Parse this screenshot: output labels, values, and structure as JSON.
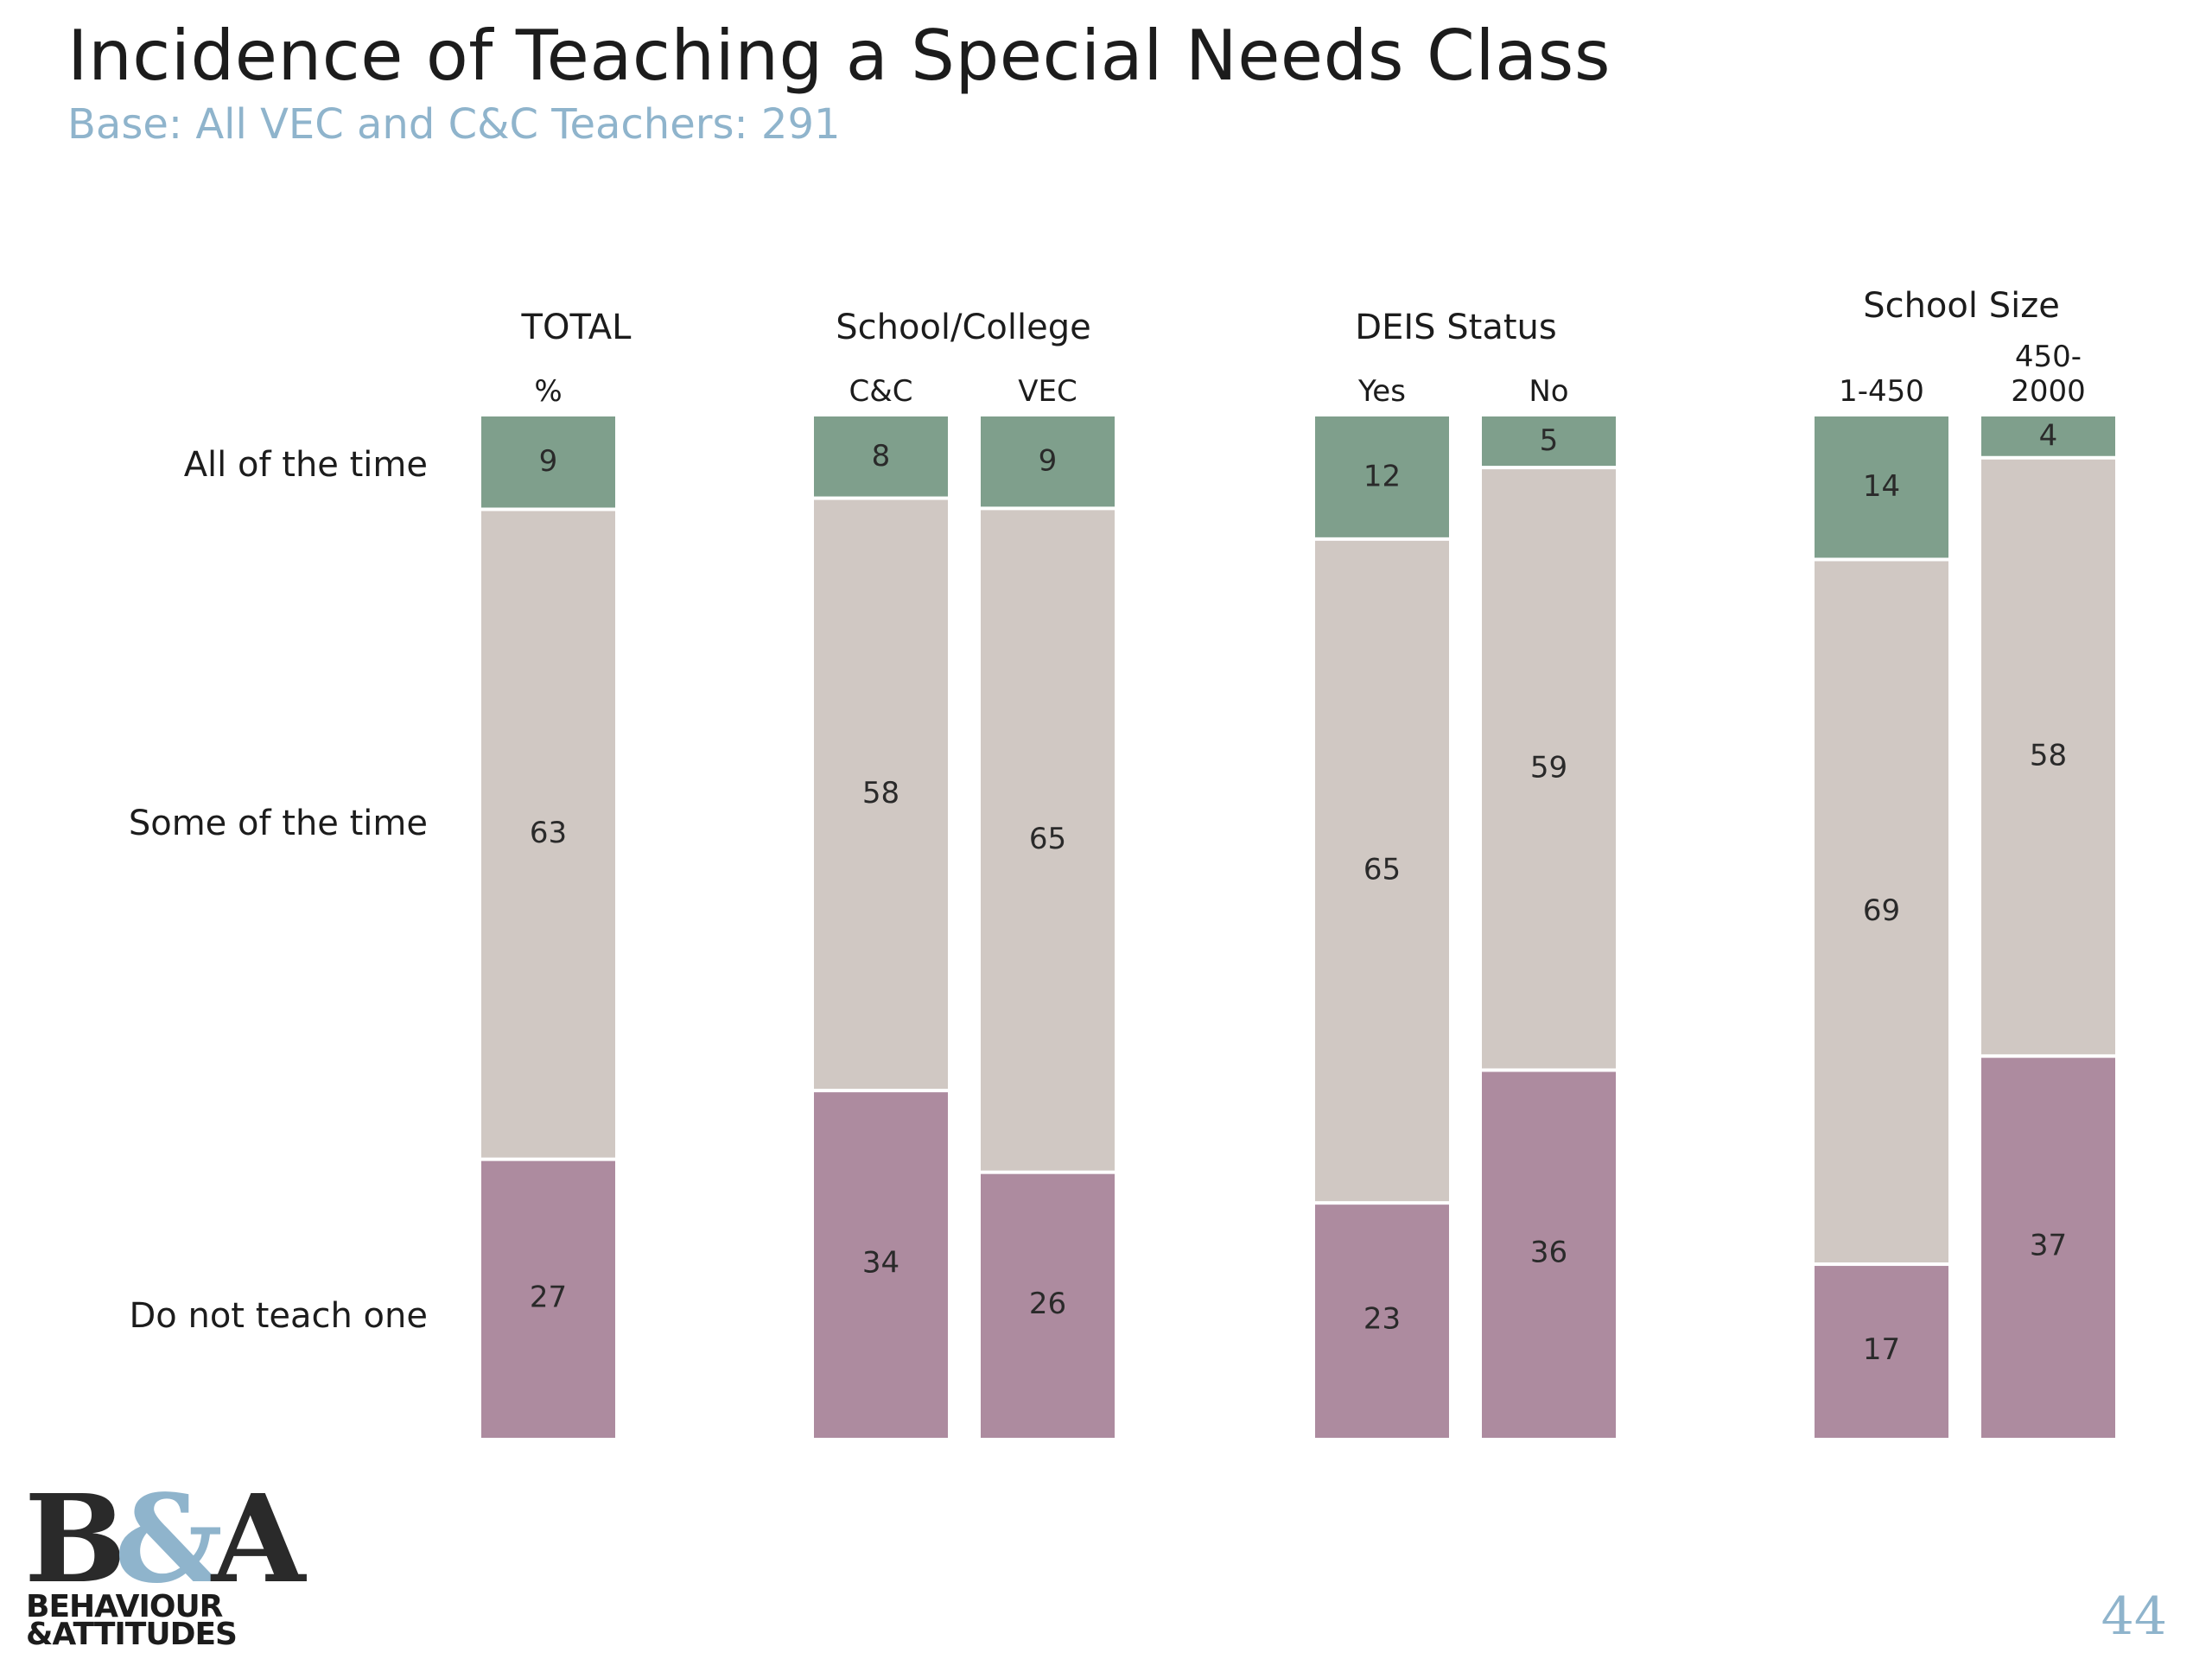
{
  "title": "Incidence of Teaching a Special Needs Class",
  "subtitle": "Base: All VEC and C&C Teachers: 291",
  "page_number": "44",
  "logo": {
    "mark": [
      "B",
      "&",
      "A"
    ],
    "line1": "BEHAVIOUR",
    "line2": "&ATTITUDES"
  },
  "colors": {
    "all_of_the_time": "#7f9f8c",
    "some_of_the_time": "#d0c8c3",
    "do_not_teach_one": "#ad8b9f",
    "subtitle": "#8fb4cc"
  },
  "chart_data": {
    "type": "bar",
    "stacked": true,
    "unit": "%",
    "series_names": [
      "All of the time",
      "Some of the time",
      "Do not teach one"
    ],
    "groups": [
      {
        "label": "TOTAL",
        "bars": [
          {
            "label": "%",
            "values": [
              9,
              63,
              27
            ]
          }
        ]
      },
      {
        "label": "School/College",
        "bars": [
          {
            "label": "C&C",
            "values": [
              8,
              58,
              34
            ]
          },
          {
            "label": "VEC",
            "values": [
              9,
              65,
              26
            ]
          }
        ]
      },
      {
        "label": "DEIS Status",
        "bars": [
          {
            "label": "Yes",
            "values": [
              12,
              65,
              23
            ]
          },
          {
            "label": "No",
            "values": [
              5,
              59,
              36
            ]
          }
        ]
      },
      {
        "label": "School Size",
        "bars": [
          {
            "label": "1-450",
            "values": [
              14,
              69,
              17
            ]
          },
          {
            "label": "450-\n2000",
            "values": [
              4,
              58,
              37
            ]
          }
        ]
      }
    ]
  }
}
